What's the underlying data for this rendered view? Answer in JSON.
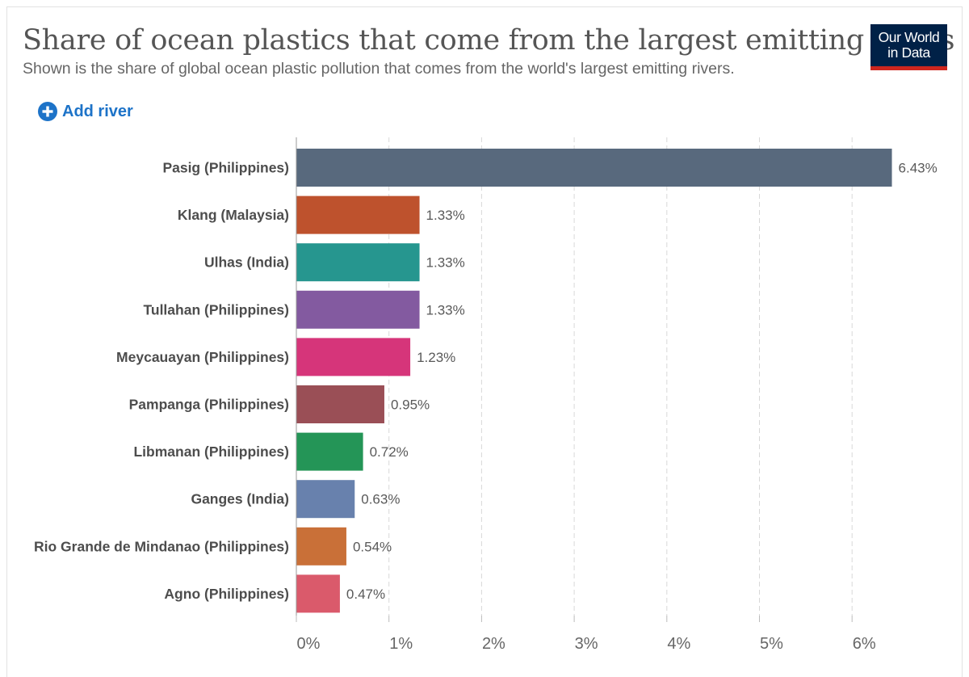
{
  "title": "Share of ocean plastics that come from the largest emitting rivers",
  "subtitle": "Shown is the share of global ocean plastic pollution that comes from the world's largest emitting rivers.",
  "logo": {
    "line1": "Our World",
    "line2": "in Data"
  },
  "add_river_label": "Add river",
  "chart_data": {
    "type": "bar",
    "orientation": "horizontal",
    "categories": [
      "Pasig (Philippines)",
      "Klang (Malaysia)",
      "Ulhas (India)",
      "Tullahan (Philippines)",
      "Meycauayan (Philippines)",
      "Pampanga (Philippines)",
      "Libmanan (Philippines)",
      "Ganges (India)",
      "Rio Grande de Mindanao (Philippines)",
      "Agno (Philippines)"
    ],
    "values": [
      6.43,
      1.33,
      1.33,
      1.33,
      1.23,
      0.95,
      0.72,
      0.63,
      0.54,
      0.47
    ],
    "value_labels": [
      "6.43%",
      "1.33%",
      "1.33%",
      "1.33%",
      "1.23%",
      "0.95%",
      "0.72%",
      "0.63%",
      "0.54%",
      "0.47%"
    ],
    "colors": [
      "#58697d",
      "#be522d",
      "#26968f",
      "#835aa0",
      "#d6357a",
      "#9a4f56",
      "#249557",
      "#6881ad",
      "#c97038",
      "#da5a6b"
    ],
    "xlim": [
      0,
      6.8
    ],
    "xticks": [
      0,
      1,
      2,
      3,
      4,
      5,
      6
    ],
    "xtick_labels": [
      "0%",
      "1%",
      "2%",
      "3%",
      "4%",
      "5%",
      "6%"
    ],
    "grid": "vertical-dashed",
    "unit": "%"
  }
}
